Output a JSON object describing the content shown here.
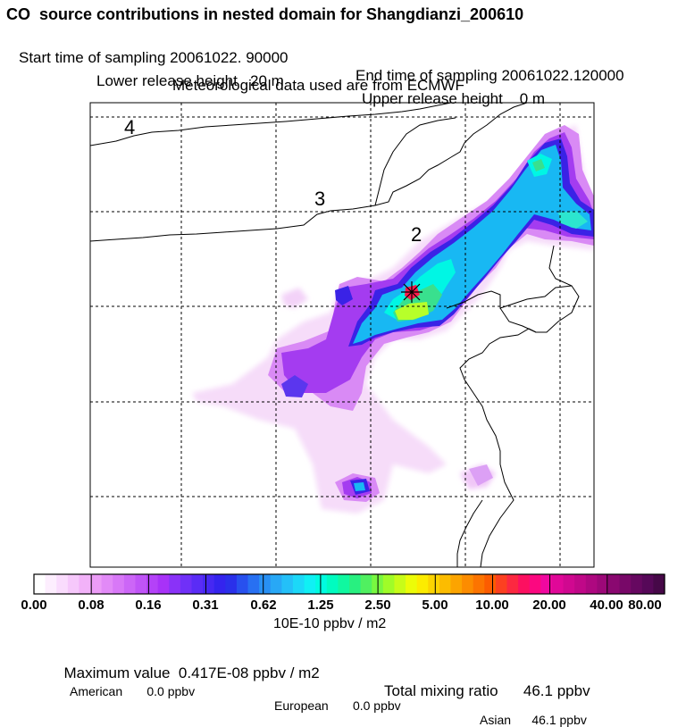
{
  "header": {
    "title": "CO  source contributions in nested domain for Shangdianzi_200610",
    "start_time": "Start time of sampling 20061022. 90000",
    "end_time": "End time of sampling 20061022.120000",
    "lower_release": "Lower release height   20 m",
    "upper_release": "Upper release height    0 m",
    "met_data": "Meteorological data used are from ECMWF"
  },
  "map": {
    "region_labels": [
      "4",
      "3",
      "2"
    ],
    "station_marker": "*",
    "colors": {
      "low": "#f3d5f7",
      "light_violet": "#d488f2",
      "purple": "#a43cf0",
      "blue": "#3a22e6",
      "cyan": "#18b8f3",
      "aqua": "#00ffe6",
      "green": "#39e08e",
      "yellowgreen": "#b7ff2a",
      "red": "#ff1a4b"
    }
  },
  "colorbar": {
    "tick_labels": [
      "0.00",
      "0.08",
      "0.16",
      "0.31",
      "0.62",
      "1.25",
      "2.50",
      "5.00",
      "10.00",
      "20.00",
      "40.00",
      "80.00"
    ],
    "units": "10E-10 ppbv / m2",
    "colors": [
      "#ffffff",
      "#fdeefe",
      "#fadcfd",
      "#f6c8fb",
      "#f2b2f9",
      "#ec9cf7",
      "#e28af7",
      "#d878f7",
      "#cc66f7",
      "#c054f7",
      "#b442f8",
      "#a832f8",
      "#8a32f8",
      "#7030f8",
      "#5a2cf6",
      "#4628f2",
      "#3424ee",
      "#2a30ea",
      "#2850ee",
      "#2870f2",
      "#2890f4",
      "#28a8f6",
      "#24c0f8",
      "#1cd8f8",
      "#10f0f4",
      "#00fce0",
      "#00fcc0",
      "#10f8a0",
      "#28f080",
      "#50f060",
      "#78f840",
      "#a0fc28",
      "#c8fc18",
      "#ecfc08",
      "#fcec00",
      "#fcd400",
      "#fcbc00",
      "#fca400",
      "#fc8c00",
      "#fc7400",
      "#fc5c00",
      "#fc4020",
      "#fc2840",
      "#fc1060",
      "#fc0880",
      "#f008a0",
      "#e00898",
      "#d00890",
      "#c00888",
      "#ae0880",
      "#9c0878",
      "#8a0870",
      "#780868",
      "#660860",
      "#560858",
      "#460848"
    ]
  },
  "footer": {
    "max_value": "Maximum value  0.417E-08 ppbv / m2",
    "total_mixing": "Total mixing ratio      46.1 ppbv",
    "american": "American       0.0 ppbv",
    "european": "European       0.0 ppbv",
    "asian": "Asian      46.1 ppbv"
  },
  "chart_data": {
    "type": "heatmap",
    "title": "CO  source contributions in nested domain for Shangdianzi_200610",
    "colorbar_ticks": [
      0.0,
      0.08,
      0.16,
      0.31,
      0.62,
      1.25,
      2.5,
      5.0,
      10.0,
      20.0,
      40.0,
      80.0
    ],
    "colorbar_units": "10E-10 ppbv / m2",
    "max_value": "0.417E-08 ppbv / m2",
    "total_mixing_ratio_ppbv": 46.1,
    "contributions_ppbv": {
      "American": 0.0,
      "European": 0.0,
      "Asian": 46.1
    }
  }
}
